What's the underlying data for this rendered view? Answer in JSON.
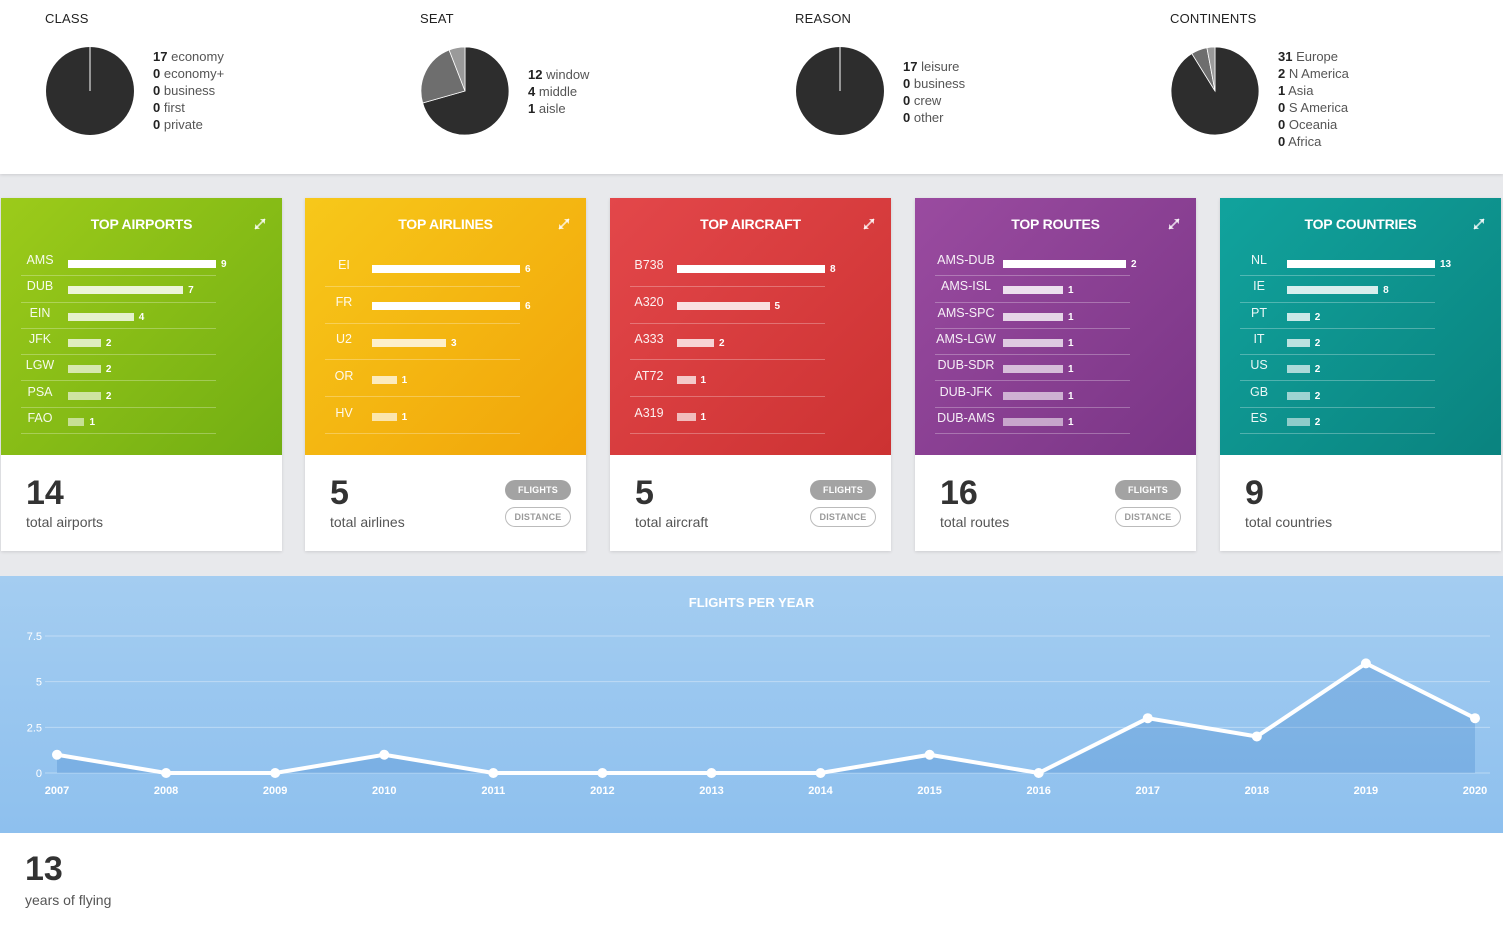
{
  "pies": [
    {
      "title": "CLASS",
      "slices": [
        17,
        0,
        0,
        0,
        0
      ],
      "legend": [
        {
          "value": "17",
          "label": "economy"
        },
        {
          "value": "0",
          "label": "economy+"
        },
        {
          "value": "0",
          "label": "business"
        },
        {
          "value": "0",
          "label": "first"
        },
        {
          "value": "0",
          "label": "private"
        }
      ]
    },
    {
      "title": "SEAT",
      "slices": [
        12,
        4,
        1
      ],
      "legend": [
        {
          "value": "12",
          "label": "window"
        },
        {
          "value": "4",
          "label": "middle"
        },
        {
          "value": "1",
          "label": "aisle"
        }
      ]
    },
    {
      "title": "REASON",
      "slices": [
        17,
        0,
        0,
        0
      ],
      "legend": [
        {
          "value": "17",
          "label": "leisure"
        },
        {
          "value": "0",
          "label": "business"
        },
        {
          "value": "0",
          "label": "crew"
        },
        {
          "value": "0",
          "label": "other"
        }
      ]
    },
    {
      "title": "CONTINENTS",
      "slices": [
        31,
        2,
        1,
        0,
        0,
        0
      ],
      "legend": [
        {
          "value": "31",
          "label": "Europe"
        },
        {
          "value": "2",
          "label": "N America"
        },
        {
          "value": "1",
          "label": "Asia"
        },
        {
          "value": "0",
          "label": "S America"
        },
        {
          "value": "0",
          "label": "Oceania"
        },
        {
          "value": "0",
          "label": "Africa"
        }
      ]
    }
  ],
  "cards": [
    {
      "title": "TOP AIRPORTS",
      "color": "green",
      "rows": [
        {
          "label": "AMS",
          "value": 9
        },
        {
          "label": "DUB",
          "value": 7
        },
        {
          "label": "EIN",
          "value": 4
        },
        {
          "label": "JFK",
          "value": 2
        },
        {
          "label": "LGW",
          "value": 2
        },
        {
          "label": "PSA",
          "value": 2
        },
        {
          "label": "FAO",
          "value": 1
        }
      ],
      "total": "14",
      "total_label": "total airports",
      "pills": false
    },
    {
      "title": "TOP AIRLINES",
      "color": "yellow",
      "rows": [
        {
          "label": "EI",
          "value": 6
        },
        {
          "label": "FR",
          "value": 6
        },
        {
          "label": "U2",
          "value": 3
        },
        {
          "label": "OR",
          "value": 1
        },
        {
          "label": "HV",
          "value": 1
        }
      ],
      "total": "5",
      "total_label": "total airlines",
      "pills": true
    },
    {
      "title": "TOP AIRCRAFT",
      "color": "red",
      "rows": [
        {
          "label": "B738",
          "value": 8
        },
        {
          "label": "A320",
          "value": 5
        },
        {
          "label": "A333",
          "value": 2
        },
        {
          "label": "AT72",
          "value": 1
        },
        {
          "label": "A319",
          "value": 1
        }
      ],
      "total": "5",
      "total_label": "total aircraft",
      "pills": true
    },
    {
      "title": "TOP ROUTES",
      "color": "purple",
      "rows": [
        {
          "label": "AMS-DUB",
          "value": 2
        },
        {
          "label": "AMS-ISL",
          "value": 1
        },
        {
          "label": "AMS-SPC",
          "value": 1
        },
        {
          "label": "AMS-LGW",
          "value": 1
        },
        {
          "label": "DUB-SDR",
          "value": 1
        },
        {
          "label": "DUB-JFK",
          "value": 1
        },
        {
          "label": "DUB-AMS",
          "value": 1
        }
      ],
      "total": "16",
      "total_label": "total routes",
      "pills": true
    },
    {
      "title": "TOP COUNTRIES",
      "color": "teal",
      "rows": [
        {
          "label": "NL",
          "value": 13
        },
        {
          "label": "IE",
          "value": 8
        },
        {
          "label": "PT",
          "value": 2
        },
        {
          "label": "IT",
          "value": 2
        },
        {
          "label": "US",
          "value": 2
        },
        {
          "label": "GB",
          "value": 2
        },
        {
          "label": "ES",
          "value": 2
        }
      ],
      "total": "9",
      "total_label": "total countries",
      "pills": false
    }
  ],
  "pill_labels": {
    "flights": "FLIGHTS",
    "distance": "DISTANCE"
  },
  "chart_data": {
    "type": "area",
    "title": "FLIGHTS PER YEAR",
    "x": [
      "2007",
      "2008",
      "2009",
      "2010",
      "2011",
      "2012",
      "2013",
      "2014",
      "2015",
      "2016",
      "2017",
      "2018",
      "2019",
      "2020"
    ],
    "values": [
      1,
      0,
      0,
      1,
      0,
      0,
      0,
      0,
      1,
      0,
      3,
      2,
      6,
      3
    ],
    "yticks": [
      "0",
      "2.5",
      "5",
      "7.5"
    ],
    "ylim": [
      0,
      7.5
    ],
    "grid": true
  },
  "years": {
    "value": "13",
    "label": "years of flying"
  }
}
